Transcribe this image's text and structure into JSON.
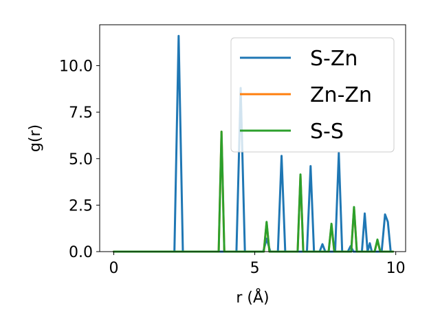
{
  "chart_data": {
    "type": "line",
    "xlabel": "r (Å)",
    "ylabel": "g(r)",
    "xlim": [
      -0.5,
      10.35
    ],
    "ylim": [
      0,
      12.2
    ],
    "xticks": [
      0,
      5,
      10
    ],
    "xtick_labels": [
      "0",
      "5",
      "10"
    ],
    "yticks": [
      0,
      2.5,
      5,
      7.5,
      10
    ],
    "ytick_labels": [
      "0.0",
      "2.5",
      "5.0",
      "7.5",
      "10.0"
    ],
    "grid": false,
    "legend_position": "top-right",
    "series": [
      {
        "name": "S-Zn",
        "color": "#1f77b4",
        "x": [
          0,
          2.15,
          2.3,
          2.45,
          4.35,
          4.5,
          4.65,
          5.3,
          5.42,
          5.55,
          5.82,
          5.95,
          6.08,
          6.85,
          6.98,
          7.1,
          7.3,
          7.4,
          7.5,
          7.85,
          7.98,
          8.1,
          8.3,
          8.4,
          8.5,
          8.8,
          8.9,
          9.0,
          9.08,
          9.15,
          9.25,
          9.5,
          9.62,
          9.72,
          9.82,
          9.9
        ],
        "y": [
          0,
          0,
          11.6,
          0,
          0,
          8.8,
          0,
          0,
          0.7,
          0,
          0,
          5.15,
          0,
          0,
          4.6,
          0,
          0,
          0.4,
          0,
          0,
          5.3,
          0,
          0,
          0.3,
          0,
          0,
          2.05,
          0,
          0.45,
          0,
          0,
          0,
          2.0,
          1.6,
          0,
          0
        ]
      },
      {
        "name": "Zn-Zn",
        "color": "#ff7f0e",
        "x": [
          0,
          3.72,
          3.82,
          3.92,
          5.32,
          5.42,
          5.52,
          6.52,
          6.62,
          6.72,
          7.62,
          7.72,
          7.82,
          8.42,
          8.52,
          8.62,
          9.25,
          9.35,
          9.45,
          9.9
        ],
        "y": [
          0,
          0,
          6.45,
          0,
          0,
          1.55,
          0,
          0,
          4.1,
          0,
          0,
          1.45,
          0,
          0,
          2.35,
          0,
          0,
          0.6,
          0,
          0
        ]
      },
      {
        "name": "S-S",
        "color": "#2ca02c",
        "x": [
          0,
          3.72,
          3.82,
          3.92,
          5.32,
          5.42,
          5.52,
          6.52,
          6.62,
          6.72,
          7.62,
          7.72,
          7.82,
          8.42,
          8.52,
          8.62,
          9.25,
          9.35,
          9.45,
          9.9
        ],
        "y": [
          0,
          0,
          6.45,
          0,
          0,
          1.6,
          0,
          0,
          4.15,
          0,
          0,
          1.5,
          0,
          0,
          2.4,
          0,
          0,
          0.65,
          0,
          0
        ]
      }
    ]
  }
}
